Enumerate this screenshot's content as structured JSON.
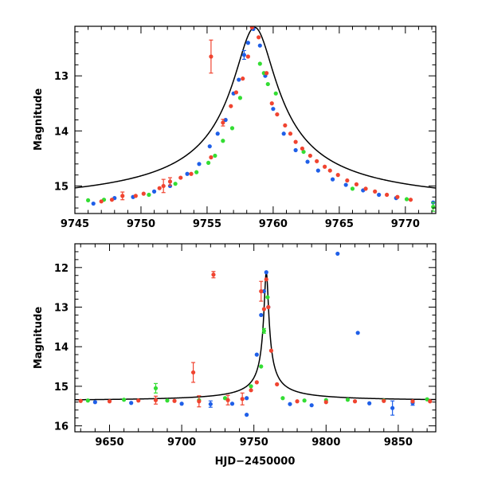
{
  "chart_data": [
    {
      "type": "scatter",
      "xlabel": "",
      "ylabel": "Magnitude",
      "xlim": [
        9745,
        9772.3
      ],
      "ylim": [
        15.5,
        12.1
      ],
      "y_inverted": true,
      "xticks": [
        "9745",
        "9750",
        "9755",
        "9760",
        "9765",
        "9770"
      ],
      "yticks": [
        "13",
        "14",
        "15"
      ],
      "model": {
        "name": "model",
        "color": "#000000",
        "t0": 9758.6,
        "peak": 12.12,
        "base": 15.42,
        "tau": 3.2
      },
      "series": [
        {
          "name": "blue",
          "color": "#1f5fe8",
          "x": [
            9746.4,
            9748.0,
            9749.4,
            9751.0,
            9752.2,
            9753.5,
            9754.4,
            9755.2,
            9755.8,
            9756.4,
            9757.0,
            9757.4,
            9757.8,
            9758.1,
            9758.5,
            9759.0,
            9759.4,
            9760.0,
            9760.8,
            9761.7,
            9762.6,
            9763.4,
            9764.5,
            9765.5,
            9766.8,
            9768.0,
            9769.3,
            9772.1
          ],
          "y": [
            15.32,
            15.22,
            15.2,
            15.1,
            15.0,
            14.78,
            14.6,
            14.28,
            14.05,
            13.8,
            13.32,
            13.07,
            12.62,
            12.4,
            12.15,
            12.45,
            13.0,
            13.6,
            14.05,
            14.35,
            14.56,
            14.72,
            14.88,
            14.98,
            15.08,
            15.16,
            15.22,
            15.3
          ],
          "err": [
            0,
            0,
            0,
            0,
            0,
            0,
            0,
            0,
            0,
            0,
            0,
            0,
            0.08,
            0,
            0,
            0,
            0,
            0,
            0,
            0,
            0,
            0,
            0,
            0,
            0,
            0,
            0,
            0
          ]
        },
        {
          "name": "green",
          "color": "#33dd33",
          "x": [
            9746.0,
            9747.2,
            9750.6,
            9752.6,
            9754.2,
            9755.1,
            9755.6,
            9756.2,
            9756.9,
            9757.5,
            9759.0,
            9759.3,
            9759.6,
            9760.2,
            9762.3,
            9766.0,
            9770.1,
            9772.1
          ],
          "y": [
            15.26,
            15.25,
            15.16,
            14.96,
            14.75,
            14.58,
            14.45,
            14.18,
            13.95,
            13.4,
            12.78,
            12.95,
            13.15,
            13.32,
            14.38,
            15.05,
            15.24,
            15.38
          ],
          "err": [
            0,
            0,
            0,
            0,
            0,
            0,
            0,
            0,
            0,
            0,
            0,
            0,
            0,
            0,
            0,
            0,
            0,
            0.08
          ]
        },
        {
          "name": "red",
          "color": "#f04430",
          "x": [
            9747.0,
            9747.8,
            9748.6,
            9749.6,
            9750.2,
            9751.4,
            9751.7,
            9752.2,
            9753.0,
            9753.8,
            9755.3,
            9756.2,
            9756.8,
            9757.2,
            9757.7,
            9758.1,
            9758.4,
            9758.9,
            9759.5,
            9759.9,
            9760.3,
            9760.9,
            9761.3,
            9761.7,
            9762.2,
            9762.8,
            9763.3,
            9763.9,
            9764.3,
            9764.9,
            9765.6,
            9766.3,
            9767.0,
            9767.7,
            9768.6,
            9769.4,
            9770.4
          ],
          "y": [
            15.28,
            15.25,
            15.18,
            15.18,
            15.14,
            15.04,
            15.0,
            14.92,
            14.85,
            14.78,
            14.48,
            13.85,
            13.55,
            13.3,
            13.05,
            12.65,
            12.12,
            12.3,
            12.95,
            13.5,
            13.7,
            13.9,
            14.05,
            14.2,
            14.32,
            14.45,
            14.55,
            14.65,
            14.72,
            14.8,
            14.9,
            14.97,
            15.05,
            15.1,
            15.16,
            15.2,
            15.25
          ],
          "err": [
            0,
            0,
            0.07,
            0,
            0,
            0,
            0.12,
            0.07,
            0,
            0,
            0,
            0.06,
            0,
            0,
            0,
            0,
            0,
            0,
            0,
            0,
            0,
            0,
            0,
            0,
            0,
            0,
            0,
            0,
            0,
            0,
            0,
            0,
            0,
            0,
            0,
            0,
            0
          ]
        },
        {
          "name": "red-outlier",
          "color": "#f04430",
          "x": [
            9755.3
          ],
          "y": [
            12.65
          ],
          "err": [
            0.3
          ]
        }
      ]
    },
    {
      "type": "scatter",
      "xlabel": "HJD−2450000",
      "ylabel": "Magnitude",
      "xlim": [
        9626,
        9876
      ],
      "ylim": [
        16.15,
        11.4
      ],
      "y_inverted": true,
      "xticks": [
        "9650",
        "9700",
        "9750",
        "9800",
        "9850"
      ],
      "yticks": [
        "12",
        "13",
        "14",
        "15",
        "16"
      ],
      "model": {
        "name": "model",
        "color": "#000000",
        "t0": 9758.6,
        "peak": 12.12,
        "base": 15.38,
        "tau": 3.2
      },
      "series": [
        {
          "name": "blue",
          "color": "#1f5fe8",
          "x": [
            9640,
            9665,
            9700,
            9720,
            9735,
            9745,
            9752,
            9755,
            9757,
            9758.6,
            9760,
            9775,
            9790,
            9808,
            9822,
            9830,
            9846,
            9860,
            9745
          ],
          "y": [
            15.4,
            15.42,
            15.44,
            15.45,
            15.44,
            15.3,
            14.2,
            13.2,
            12.6,
            12.12,
            13.0,
            15.45,
            15.48,
            11.65,
            13.65,
            15.43,
            15.55,
            15.42,
            15.72
          ],
          "err": [
            0,
            0,
            0,
            0.08,
            0,
            0,
            0,
            0,
            0,
            0,
            0,
            0,
            0,
            0,
            0,
            0,
            0.18,
            0.06,
            0
          ]
        },
        {
          "name": "green",
          "color": "#33dd33",
          "x": [
            9635,
            9660,
            9682,
            9690,
            9712,
            9730,
            9748,
            9755,
            9757,
            9759.5,
            9770,
            9785,
            9800,
            9815,
            9840,
            9870
          ],
          "y": [
            15.36,
            15.34,
            15.05,
            15.36,
            15.35,
            15.3,
            15.0,
            14.5,
            13.6,
            12.75,
            15.3,
            15.36,
            15.35,
            15.34,
            15.36,
            15.33
          ],
          "err": [
            0,
            0,
            0.12,
            0,
            0,
            0,
            0,
            0,
            0.06,
            0,
            0,
            0,
            0,
            0,
            0,
            0
          ]
        },
        {
          "name": "red",
          "color": "#f04430",
          "x": [
            9630,
            9650,
            9670,
            9682,
            9695,
            9708,
            9712,
            9722,
            9732,
            9742,
            9748,
            9752,
            9755,
            9757,
            9758.6,
            9760,
            9762,
            9766,
            9780,
            9800,
            9820,
            9840,
            9860,
            9872
          ],
          "y": [
            15.37,
            15.38,
            15.36,
            15.35,
            15.37,
            14.65,
            15.38,
            12.18,
            15.35,
            15.32,
            15.1,
            14.9,
            12.6,
            13.05,
            12.3,
            13.0,
            14.1,
            14.95,
            15.38,
            15.4,
            15.38,
            15.37,
            15.38,
            15.38
          ],
          "err": [
            0,
            0,
            0,
            0.1,
            0,
            0.25,
            0.14,
            0.08,
            0.12,
            0.15,
            0,
            0,
            0.25,
            0,
            0,
            0,
            0,
            0,
            0,
            0,
            0,
            0,
            0,
            0
          ]
        }
      ]
    }
  ]
}
